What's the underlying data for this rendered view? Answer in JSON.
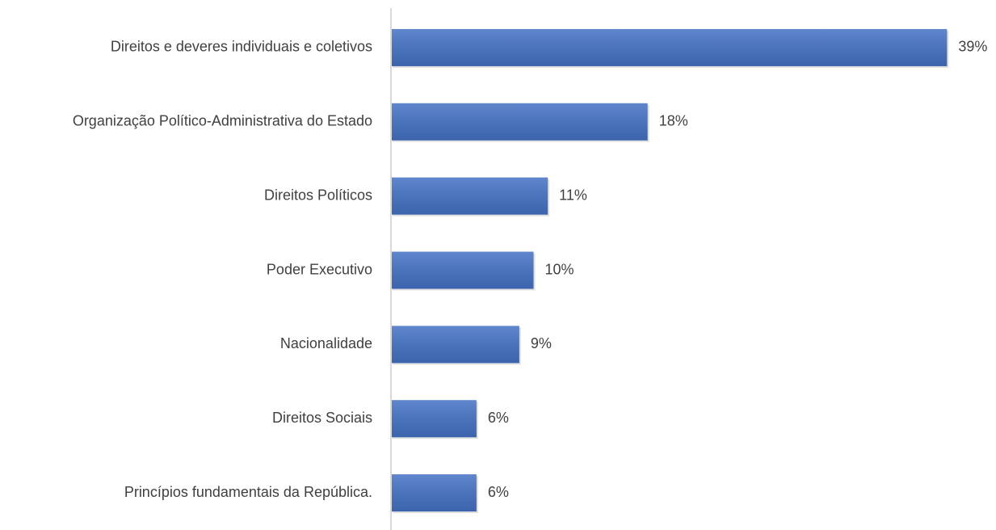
{
  "chart_data": {
    "type": "barh",
    "categories": [
      "Direitos e deveres individuais e coletivos",
      "Organização Político-Administrativa do Estado",
      "Direitos Políticos",
      "Poder Executivo",
      "Nacionalidade",
      "Direitos Sociais",
      "Princípios fundamentais da República."
    ],
    "values": [
      39,
      18,
      11,
      10,
      9,
      6,
      6
    ],
    "value_labels": [
      "39%",
      "18%",
      "11%",
      "10%",
      "9%",
      "6%",
      "6%"
    ],
    "color": "#4472c4",
    "xlim": [
      0,
      40
    ]
  }
}
